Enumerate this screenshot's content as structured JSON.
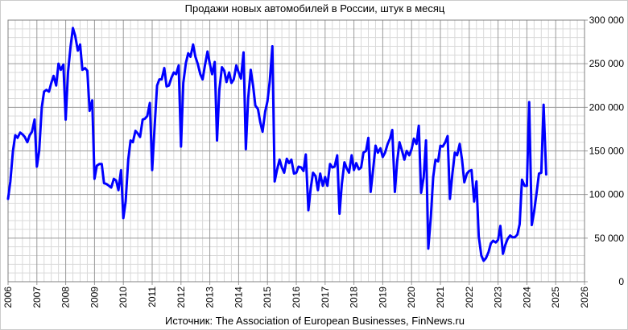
{
  "chart_data": {
    "type": "line",
    "title": "Продажи новых автомобилей в России, штук в месяц",
    "source": "Источник: The Association of European Businesses, FinNews.ru",
    "xlabel": "",
    "ylabel": "",
    "x_range": [
      2006,
      2026
    ],
    "y_range": [
      0,
      300000
    ],
    "x_ticks": [
      "2006",
      "2007",
      "2008",
      "2009",
      "2010",
      "2011",
      "2012",
      "2013",
      "2014",
      "2015",
      "2016",
      "2017",
      "2018",
      "2019",
      "2020",
      "2021",
      "2022",
      "2023",
      "2024",
      "2025",
      "2026"
    ],
    "y_ticks": [
      {
        "value": 0,
        "label": "0"
      },
      {
        "value": 50000,
        "label": "50 000"
      },
      {
        "value": 100000,
        "label": "100 000"
      },
      {
        "value": 150000,
        "label": "150 000"
      },
      {
        "value": 200000,
        "label": "200 000"
      },
      {
        "value": 250000,
        "label": "250 000"
      },
      {
        "value": 300000,
        "label": "300 000"
      }
    ],
    "grid": true,
    "line_color": "#0000ff",
    "series": [
      {
        "points": [
          [
            2006.0,
            95000
          ],
          [
            2006.08,
            115000
          ],
          [
            2006.17,
            150000
          ],
          [
            2006.25,
            168000
          ],
          [
            2006.33,
            165000
          ],
          [
            2006.42,
            171000
          ],
          [
            2006.5,
            169000
          ],
          [
            2006.58,
            166000
          ],
          [
            2006.67,
            160000
          ],
          [
            2006.75,
            168000
          ],
          [
            2006.83,
            172000
          ],
          [
            2006.92,
            186000
          ],
          [
            2007.0,
            132000
          ],
          [
            2007.08,
            150000
          ],
          [
            2007.17,
            200000
          ],
          [
            2007.25,
            218000
          ],
          [
            2007.33,
            220000
          ],
          [
            2007.42,
            218000
          ],
          [
            2007.5,
            228000
          ],
          [
            2007.58,
            236000
          ],
          [
            2007.67,
            225000
          ],
          [
            2007.75,
            250000
          ],
          [
            2007.83,
            243000
          ],
          [
            2007.92,
            249000
          ],
          [
            2008.0,
            186000
          ],
          [
            2008.08,
            240000
          ],
          [
            2008.17,
            270000
          ],
          [
            2008.25,
            291000
          ],
          [
            2008.33,
            282000
          ],
          [
            2008.42,
            265000
          ],
          [
            2008.5,
            272000
          ],
          [
            2008.58,
            243000
          ],
          [
            2008.67,
            245000
          ],
          [
            2008.75,
            242000
          ],
          [
            2008.83,
            196000
          ],
          [
            2008.92,
            208000
          ],
          [
            2009.0,
            118000
          ],
          [
            2009.08,
            133000
          ],
          [
            2009.17,
            135000
          ],
          [
            2009.25,
            135000
          ],
          [
            2009.33,
            113000
          ],
          [
            2009.42,
            112000
          ],
          [
            2009.5,
            110000
          ],
          [
            2009.58,
            108000
          ],
          [
            2009.67,
            118000
          ],
          [
            2009.75,
            116000
          ],
          [
            2009.83,
            105000
          ],
          [
            2009.92,
            128000
          ],
          [
            2010.0,
            73000
          ],
          [
            2010.08,
            92000
          ],
          [
            2010.17,
            140000
          ],
          [
            2010.25,
            162000
          ],
          [
            2010.33,
            160000
          ],
          [
            2010.42,
            173000
          ],
          [
            2010.5,
            170000
          ],
          [
            2010.58,
            166000
          ],
          [
            2010.67,
            186000
          ],
          [
            2010.75,
            187000
          ],
          [
            2010.83,
            190000
          ],
          [
            2010.92,
            205000
          ],
          [
            2011.0,
            128000
          ],
          [
            2011.08,
            175000
          ],
          [
            2011.17,
            225000
          ],
          [
            2011.25,
            232000
          ],
          [
            2011.33,
            232000
          ],
          [
            2011.42,
            245000
          ],
          [
            2011.5,
            224000
          ],
          [
            2011.58,
            225000
          ],
          [
            2011.67,
            234000
          ],
          [
            2011.75,
            240000
          ],
          [
            2011.83,
            238000
          ],
          [
            2011.92,
            248000
          ],
          [
            2012.0,
            155000
          ],
          [
            2012.08,
            228000
          ],
          [
            2012.17,
            251000
          ],
          [
            2012.25,
            262000
          ],
          [
            2012.33,
            258000
          ],
          [
            2012.42,
            272000
          ],
          [
            2012.5,
            258000
          ],
          [
            2012.58,
            250000
          ],
          [
            2012.67,
            238000
          ],
          [
            2012.75,
            232000
          ],
          [
            2012.83,
            248000
          ],
          [
            2012.92,
            264000
          ],
          [
            2013.0,
            250000
          ],
          [
            2013.08,
            238000
          ],
          [
            2013.17,
            252000
          ],
          [
            2013.25,
            162000
          ],
          [
            2013.33,
            220000
          ],
          [
            2013.42,
            246000
          ],
          [
            2013.5,
            242000
          ],
          [
            2013.58,
            229000
          ],
          [
            2013.67,
            240000
          ],
          [
            2013.75,
            228000
          ],
          [
            2013.83,
            232000
          ],
          [
            2013.92,
            248000
          ],
          [
            2014.0,
            240000
          ],
          [
            2014.08,
            233000
          ],
          [
            2014.17,
            263000
          ],
          [
            2014.25,
            152000
          ],
          [
            2014.33,
            210000
          ],
          [
            2014.42,
            243000
          ],
          [
            2014.5,
            225000
          ],
          [
            2014.58,
            202000
          ],
          [
            2014.67,
            198000
          ],
          [
            2014.75,
            183000
          ],
          [
            2014.83,
            172000
          ],
          [
            2014.92,
            195000
          ],
          [
            2015.0,
            207000
          ],
          [
            2015.08,
            230000
          ],
          [
            2015.17,
            270000
          ],
          [
            2015.25,
            115000
          ],
          [
            2015.33,
            128000
          ],
          [
            2015.42,
            140000
          ],
          [
            2015.5,
            131000
          ],
          [
            2015.58,
            125000
          ],
          [
            2015.67,
            141000
          ],
          [
            2015.75,
            136000
          ],
          [
            2015.83,
            140000
          ],
          [
            2015.92,
            124000
          ],
          [
            2016.0,
            125000
          ],
          [
            2016.08,
            132000
          ],
          [
            2016.17,
            131000
          ],
          [
            2016.25,
            127000
          ],
          [
            2016.33,
            146000
          ],
          [
            2016.42,
            82000
          ],
          [
            2016.5,
            107000
          ],
          [
            2016.58,
            125000
          ],
          [
            2016.67,
            121000
          ],
          [
            2016.75,
            105000
          ],
          [
            2016.83,
            124000
          ],
          [
            2016.92,
            110000
          ],
          [
            2017.0,
            120000
          ],
          [
            2017.08,
            110000
          ],
          [
            2017.17,
            135000
          ],
          [
            2017.25,
            131000
          ],
          [
            2017.33,
            132000
          ],
          [
            2017.42,
            145000
          ],
          [
            2017.5,
            78000
          ],
          [
            2017.58,
            112000
          ],
          [
            2017.67,
            137000
          ],
          [
            2017.75,
            130000
          ],
          [
            2017.83,
            125000
          ],
          [
            2017.92,
            145000
          ],
          [
            2018.0,
            128000
          ],
          [
            2018.08,
            136000
          ],
          [
            2018.17,
            129000
          ],
          [
            2018.25,
            131000
          ],
          [
            2018.33,
            148000
          ],
          [
            2018.42,
            150000
          ],
          [
            2018.5,
            165000
          ],
          [
            2018.58,
            103000
          ],
          [
            2018.67,
            130000
          ],
          [
            2018.75,
            156000
          ],
          [
            2018.83,
            148000
          ],
          [
            2018.92,
            153000
          ],
          [
            2019.0,
            143000
          ],
          [
            2019.08,
            148000
          ],
          [
            2019.17,
            158000
          ],
          [
            2019.25,
            164000
          ],
          [
            2019.33,
            174000
          ],
          [
            2019.42,
            103000
          ],
          [
            2019.5,
            138000
          ],
          [
            2019.58,
            160000
          ],
          [
            2019.67,
            150000
          ],
          [
            2019.75,
            140000
          ],
          [
            2019.83,
            150000
          ],
          [
            2019.92,
            145000
          ],
          [
            2020.0,
            152000
          ],
          [
            2020.08,
            164000
          ],
          [
            2020.17,
            158000
          ],
          [
            2020.25,
            179000
          ],
          [
            2020.33,
            102000
          ],
          [
            2020.42,
            120000
          ],
          [
            2020.5,
            162000
          ],
          [
            2020.58,
            38000
          ],
          [
            2020.67,
            75000
          ],
          [
            2020.75,
            120000
          ],
          [
            2020.83,
            140000
          ],
          [
            2020.92,
            138000
          ],
          [
            2021.0,
            156000
          ],
          [
            2021.08,
            155000
          ],
          [
            2021.17,
            160000
          ],
          [
            2021.25,
            167000
          ],
          [
            2021.33,
            95000
          ],
          [
            2021.42,
            125000
          ],
          [
            2021.5,
            148000
          ],
          [
            2021.58,
            145000
          ],
          [
            2021.67,
            158000
          ],
          [
            2021.75,
            140000
          ],
          [
            2021.83,
            114000
          ],
          [
            2021.92,
            124000
          ],
          [
            2022.0,
            127000
          ],
          [
            2022.08,
            128000
          ],
          [
            2022.17,
            92000
          ],
          [
            2022.25,
            115000
          ],
          [
            2022.33,
            52000
          ],
          [
            2022.42,
            30000
          ],
          [
            2022.5,
            24000
          ],
          [
            2022.58,
            27000
          ],
          [
            2022.67,
            34000
          ],
          [
            2022.75,
            44000
          ],
          [
            2022.83,
            47000
          ],
          [
            2022.92,
            45000
          ],
          [
            2023.0,
            48000
          ],
          [
            2023.08,
            64000
          ],
          [
            2023.17,
            32000
          ],
          [
            2023.25,
            42000
          ],
          [
            2023.33,
            49000
          ],
          [
            2023.42,
            53000
          ],
          [
            2023.5,
            51000
          ],
          [
            2023.58,
            51000
          ],
          [
            2023.67,
            54000
          ],
          [
            2023.75,
            66000
          ],
          [
            2023.83,
            117000
          ],
          [
            2023.92,
            110000
          ],
          [
            2024.0,
            110000
          ],
          [
            2024.08,
            206000
          ],
          [
            2024.17,
            65000
          ],
          [
            2024.25,
            80000
          ],
          [
            2024.33,
            100000
          ],
          [
            2024.42,
            124000
          ],
          [
            2024.5,
            125000
          ],
          [
            2024.58,
            203000
          ],
          [
            2024.67,
            123000
          ]
        ]
      }
    ]
  }
}
